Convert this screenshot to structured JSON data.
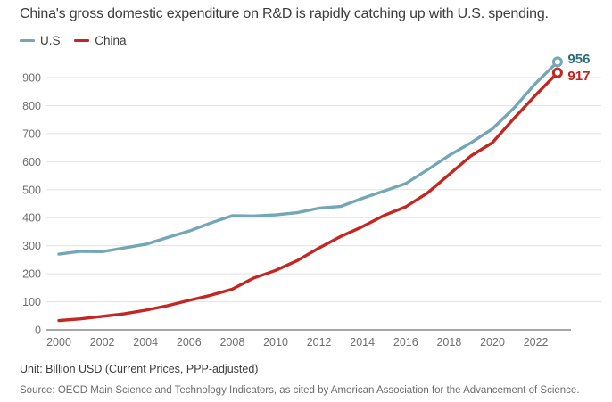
{
  "title": "China's gross domestic expenditure on R&D is rapidly catching up with U.S. spending.",
  "legend": {
    "items": [
      {
        "label": "U.S.",
        "color": "#74a7b5"
      },
      {
        "label": "China",
        "color": "#c42622"
      }
    ]
  },
  "footer": {
    "unit": "Unit: Billion USD (Current Prices, PPP-adjusted)",
    "source": "Source: OECD Main Science and Technology Indicators, as cited by American Association for the Advancement of Science."
  },
  "colors": {
    "title_text": "#3c3c3c",
    "tick_text": "#6e6e6e",
    "gridline": "#e3e3e3",
    "axis_line": "#a8a8a8",
    "us_line": "#74a7b5",
    "us_label": "#2f6c7c",
    "china_line": "#c42622",
    "china_label": "#c0221e"
  },
  "chart_data": {
    "type": "line",
    "title": "China's gross domestic expenditure on R&D is rapidly catching up with U.S. spending.",
    "xlabel": "",
    "ylabel": "Billion USD (Current Prices, PPP-adjusted)",
    "x": [
      2000,
      2001,
      2002,
      2003,
      2004,
      2005,
      2006,
      2007,
      2008,
      2009,
      2010,
      2011,
      2012,
      2013,
      2014,
      2015,
      2016,
      2017,
      2018,
      2019,
      2020,
      2021,
      2022,
      2023
    ],
    "series": [
      {
        "name": "U.S.",
        "color": "#74a7b5",
        "label_color": "#2f6c7c",
        "end_label": "956",
        "values": [
          270,
          280,
          279,
          292,
          305,
          329,
          352,
          381,
          407,
          406,
          410,
          418,
          434,
          440,
          469,
          495,
          522,
          571,
          622,
          667,
          717,
          792,
          880,
          956
        ]
      },
      {
        "name": "China",
        "color": "#c42622",
        "label_color": "#c0221e",
        "end_label": "917",
        "values": [
          33,
          39,
          48,
          57,
          70,
          86,
          105,
          123,
          145,
          185,
          212,
          247,
          292,
          333,
          368,
          408,
          439,
          488,
          554,
          620,
          668,
          755,
          838,
          917
        ]
      }
    ],
    "xticks": [
      2000,
      2002,
      2004,
      2006,
      2008,
      2010,
      2012,
      2014,
      2016,
      2018,
      2020,
      2022
    ],
    "yticks": [
      0,
      100,
      200,
      300,
      400,
      500,
      600,
      700,
      800,
      900
    ],
    "ylim": [
      0,
      960
    ],
    "grid": "horizontal",
    "legend_position": "top-left"
  }
}
